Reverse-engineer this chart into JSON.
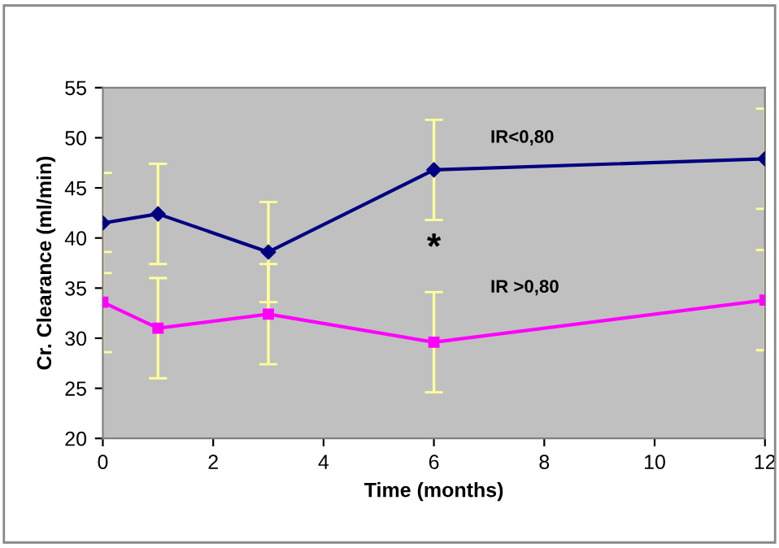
{
  "chart_data": {
    "type": "line",
    "xlabel": "Time (months)",
    "ylabel": "Cr. Clearance (ml/min)",
    "x": [
      0,
      1,
      3,
      6,
      12
    ],
    "series": [
      {
        "name": "IR<0,80",
        "color": "#000080",
        "marker": "diamond",
        "values": [
          41.5,
          42.4,
          38.6,
          46.8,
          47.9
        ],
        "errors": [
          5,
          5,
          5,
          5,
          5
        ]
      },
      {
        "name": "IR >0,80",
        "color": "#ff00ff",
        "marker": "square",
        "values": [
          33.6,
          31.0,
          32.4,
          29.6,
          33.8
        ],
        "errors": [
          5,
          5,
          5,
          5,
          5
        ]
      }
    ],
    "annotations": [
      "*"
    ],
    "xlim": [
      0,
      12
    ],
    "xticks": [
      0,
      2,
      4,
      6,
      8,
      10,
      12
    ],
    "ylim": [
      20,
      55
    ],
    "yticks": [
      20,
      25,
      30,
      35,
      40,
      45,
      50,
      55
    ],
    "grid": false,
    "legend": false,
    "line_style": "solid"
  }
}
